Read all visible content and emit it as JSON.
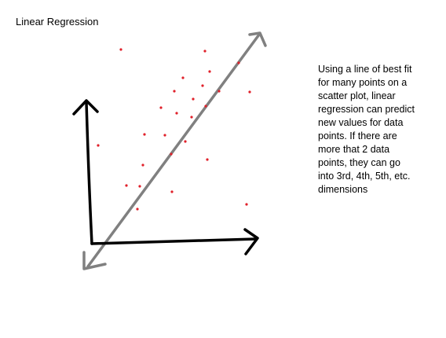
{
  "title": "Linear Regression",
  "description_lines": [
    "Using a line of best fit",
    "for many points on a",
    "scatter plot, linear",
    "regression can predict",
    "new values for data",
    "points. If there are",
    "more that 2 data",
    "points, they can go",
    "into 3rd, 4th, 5th, etc.",
    "dimensions"
  ],
  "colors": {
    "axes": "#000000",
    "regression_line": "#808080",
    "points": "#e0202a",
    "text": "#000000"
  },
  "icons": {
    "axes": "hand-drawn-axes-arrows",
    "regression_line": "double-headed-arrow"
  }
}
